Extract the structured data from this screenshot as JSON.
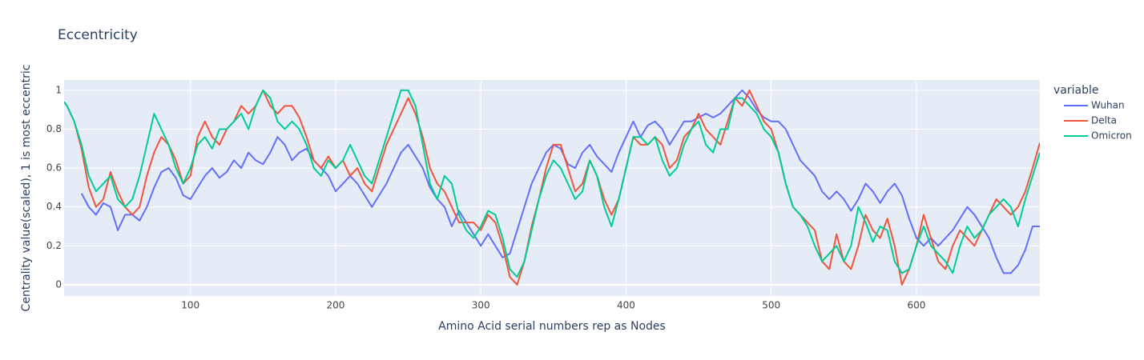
{
  "chart_data": {
    "type": "line",
    "title": "Eccentricity",
    "x_label": "Amino Acid serial numbers rep as Nodes",
    "y_label": "Centrality value(scaled), 1 is most eccentric",
    "legend_title": "variable",
    "legend_position": "right",
    "grid": true,
    "xlim": [
      13,
      685
    ],
    "ylim": [
      -0.058,
      1.053
    ],
    "xticks": [
      100,
      200,
      300,
      400,
      500,
      600
    ],
    "yticks": [
      0,
      0.2,
      0.4,
      0.6,
      0.8,
      1
    ],
    "x": [
      13,
      15,
      20,
      25,
      30,
      35,
      40,
      45,
      50,
      55,
      60,
      65,
      70,
      75,
      80,
      85,
      90,
      95,
      100,
      105,
      110,
      115,
      120,
      125,
      130,
      135,
      140,
      145,
      150,
      155,
      160,
      165,
      170,
      175,
      180,
      185,
      190,
      195,
      200,
      205,
      210,
      215,
      220,
      225,
      230,
      235,
      240,
      245,
      250,
      255,
      260,
      265,
      270,
      275,
      280,
      285,
      290,
      295,
      300,
      305,
      310,
      315,
      320,
      325,
      330,
      335,
      340,
      345,
      350,
      355,
      360,
      365,
      370,
      375,
      380,
      385,
      390,
      395,
      400,
      405,
      410,
      415,
      420,
      425,
      430,
      435,
      440,
      445,
      450,
      455,
      460,
      465,
      470,
      475,
      480,
      485,
      490,
      495,
      500,
      505,
      510,
      515,
      520,
      525,
      530,
      535,
      540,
      545,
      550,
      555,
      560,
      565,
      570,
      575,
      580,
      585,
      590,
      595,
      600,
      605,
      610,
      615,
      620,
      625,
      630,
      635,
      640,
      645,
      650,
      655,
      660,
      665,
      670,
      675,
      680,
      685
    ],
    "series": [
      {
        "name": "Wuhan",
        "color": "#636efa",
        "values": [
          null,
          null,
          null,
          0.47,
          0.4,
          0.36,
          0.42,
          0.4,
          0.28,
          0.36,
          0.36,
          0.33,
          0.4,
          0.5,
          0.58,
          0.6,
          0.55,
          0.46,
          0.44,
          0.5,
          0.56,
          0.6,
          0.55,
          0.58,
          0.64,
          0.6,
          0.68,
          0.64,
          0.62,
          0.68,
          0.76,
          0.72,
          0.64,
          0.68,
          0.7,
          0.64,
          0.6,
          0.56,
          0.48,
          0.52,
          0.56,
          0.52,
          0.46,
          0.4,
          0.46,
          0.52,
          0.6,
          0.68,
          0.72,
          0.66,
          0.6,
          0.5,
          0.44,
          0.4,
          0.3,
          0.38,
          0.32,
          0.26,
          0.2,
          0.26,
          0.2,
          0.14,
          0.16,
          0.28,
          0.4,
          0.52,
          0.6,
          0.68,
          0.72,
          0.7,
          0.62,
          0.6,
          0.68,
          0.72,
          0.66,
          0.62,
          0.58,
          0.68,
          0.76,
          0.84,
          0.76,
          0.82,
          0.84,
          0.8,
          0.72,
          0.78,
          0.84,
          0.84,
          0.86,
          0.88,
          0.86,
          0.88,
          0.92,
          0.96,
          1,
          0.96,
          0.9,
          0.86,
          0.84,
          0.84,
          0.8,
          0.72,
          0.64,
          0.6,
          0.56,
          0.48,
          0.44,
          0.48,
          0.44,
          0.38,
          0.44,
          0.52,
          0.48,
          0.42,
          0.48,
          0.52,
          0.46,
          0.34,
          0.24,
          0.2,
          0.24,
          0.2,
          0.24,
          0.28,
          0.34,
          0.4,
          0.36,
          0.3,
          0.24,
          0.14,
          0.06,
          0.06,
          0.1,
          0.18,
          0.3,
          0.3
        ]
      },
      {
        "name": "Delta",
        "color": "#ef553b",
        "values": [
          0.94,
          0.92,
          0.84,
          0.7,
          0.5,
          0.4,
          0.44,
          0.58,
          0.48,
          0.4,
          0.36,
          0.4,
          0.56,
          0.68,
          0.76,
          0.72,
          0.64,
          0.52,
          0.56,
          0.76,
          0.84,
          0.76,
          0.72,
          0.8,
          0.84,
          0.92,
          0.88,
          0.92,
          1,
          0.92,
          0.88,
          0.92,
          0.92,
          0.86,
          0.76,
          0.64,
          0.6,
          0.66,
          0.6,
          0.64,
          0.56,
          0.6,
          0.52,
          0.48,
          0.6,
          0.72,
          0.8,
          0.88,
          0.96,
          0.88,
          0.76,
          0.6,
          0.52,
          0.48,
          0.4,
          0.32,
          0.32,
          0.32,
          0.28,
          0.36,
          0.32,
          0.2,
          0.04,
          0,
          0.12,
          0.3,
          0.44,
          0.6,
          0.72,
          0.72,
          0.6,
          0.48,
          0.52,
          0.64,
          0.56,
          0.44,
          0.36,
          0.44,
          0.6,
          0.76,
          0.72,
          0.72,
          0.76,
          0.72,
          0.6,
          0.64,
          0.76,
          0.8,
          0.88,
          0.8,
          0.76,
          0.72,
          0.84,
          0.96,
          0.92,
          1,
          0.92,
          0.84,
          0.8,
          0.68,
          0.52,
          0.4,
          0.36,
          0.32,
          0.28,
          0.12,
          0.08,
          0.26,
          0.12,
          0.08,
          0.2,
          0.36,
          0.28,
          0.24,
          0.34,
          0.2,
          0,
          0.08,
          0.2,
          0.36,
          0.24,
          0.12,
          0.08,
          0.2,
          0.28,
          0.24,
          0.2,
          0.28,
          0.36,
          0.44,
          0.4,
          0.36,
          0.4,
          0.48,
          0.6,
          0.73
        ]
      },
      {
        "name": "Omicron",
        "color": "#00cc96",
        "values": [
          0.94,
          0.92,
          0.84,
          0.72,
          0.56,
          0.48,
          0.52,
          0.56,
          0.44,
          0.4,
          0.44,
          0.56,
          0.72,
          0.88,
          0.8,
          0.72,
          0.6,
          0.52,
          0.6,
          0.72,
          0.76,
          0.7,
          0.8,
          0.8,
          0.84,
          0.88,
          0.8,
          0.92,
          1,
          0.96,
          0.84,
          0.8,
          0.84,
          0.8,
          0.72,
          0.6,
          0.56,
          0.64,
          0.6,
          0.64,
          0.72,
          0.64,
          0.56,
          0.52,
          0.64,
          0.76,
          0.88,
          1,
          1,
          0.92,
          0.72,
          0.52,
          0.44,
          0.56,
          0.52,
          0.36,
          0.28,
          0.24,
          0.3,
          0.38,
          0.36,
          0.24,
          0.08,
          0.04,
          0.12,
          0.28,
          0.44,
          0.56,
          0.64,
          0.6,
          0.52,
          0.44,
          0.48,
          0.64,
          0.56,
          0.4,
          0.3,
          0.44,
          0.6,
          0.76,
          0.76,
          0.72,
          0.76,
          0.64,
          0.56,
          0.6,
          0.72,
          0.8,
          0.84,
          0.72,
          0.68,
          0.8,
          0.8,
          0.96,
          0.96,
          0.92,
          0.88,
          0.8,
          0.76,
          0.68,
          0.52,
          0.4,
          0.36,
          0.3,
          0.2,
          0.12,
          0.16,
          0.2,
          0.12,
          0.2,
          0.4,
          0.32,
          0.22,
          0.3,
          0.28,
          0.12,
          0.06,
          0.08,
          0.2,
          0.3,
          0.2,
          0.16,
          0.12,
          0.06,
          0.2,
          0.3,
          0.24,
          0.28,
          0.36,
          0.4,
          0.44,
          0.4,
          0.3,
          0.44,
          0.56,
          0.68
        ]
      }
    ]
  }
}
